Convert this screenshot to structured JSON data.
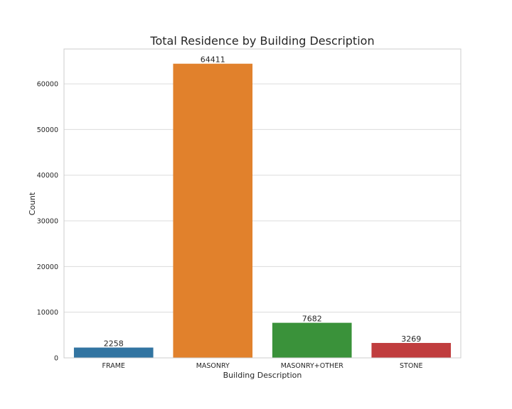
{
  "chart_data": {
    "type": "bar",
    "title": "Total Residence by Building Description",
    "xlabel": "Building Description",
    "ylabel": "Count",
    "categories": [
      "FRAME",
      "MASONRY",
      "MASONRY+OTHER",
      "STONE"
    ],
    "values": [
      2258,
      64411,
      7682,
      3269
    ],
    "data_labels": [
      "2258",
      "64411",
      "7682",
      "3269"
    ],
    "colors": [
      "#3274a1",
      "#e1812c",
      "#3a923a",
      "#c03d3e"
    ],
    "ylim": [
      0,
      67632
    ],
    "yticks": [
      0,
      10000,
      20000,
      30000,
      40000,
      50000,
      60000
    ],
    "ytick_labels": [
      "0",
      "10000",
      "20000",
      "30000",
      "40000",
      "50000",
      "60000"
    ],
    "grid": true,
    "legend": "none"
  }
}
